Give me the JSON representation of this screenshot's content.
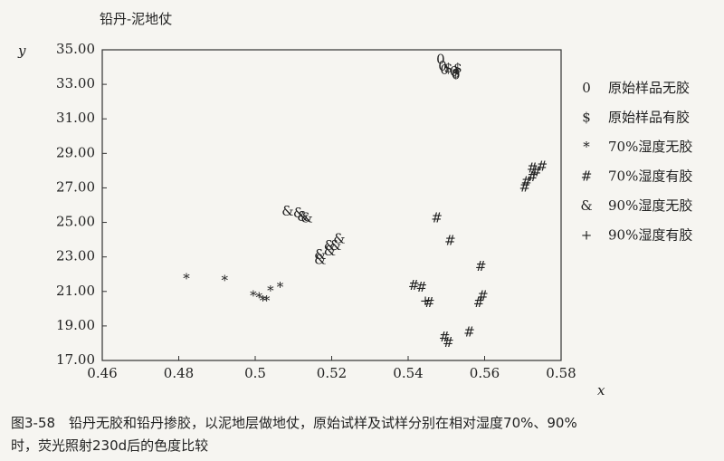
{
  "chart_data": {
    "type": "scatter",
    "title": "铅丹-泥地仗",
    "y_label": "y",
    "x_label": "x",
    "caption": [
      "图3-58　铅丹无胶和铅丹掺胶，以泥地层做地仗，原始试样及试样分别在相对湿度70%、90%",
      "时，荧光照射230d后的色度比较"
    ],
    "xlim": [
      0.46,
      0.58
    ],
    "xticks": [
      0.46,
      0.48,
      0.5,
      0.52,
      0.54,
      0.56,
      0.58
    ],
    "ylim": [
      17,
      35
    ],
    "yticks": [
      {
        "value": 17,
        "label": "17.00"
      },
      {
        "value": 19,
        "label": "19.00"
      },
      {
        "value": 21,
        "label": "21.00"
      },
      {
        "value": 23,
        "label": "23.00"
      },
      {
        "value": 25,
        "label": "25.00"
      },
      {
        "value": 27,
        "label": "27.00"
      },
      {
        "value": 29,
        "label": "29.00"
      },
      {
        "value": 31,
        "label": "31.00"
      },
      {
        "value": 33,
        "label": "33.00"
      },
      {
        "value": 35,
        "label": "35.00"
      }
    ],
    "legend": "right",
    "series": [
      {
        "name": "原始样品无胶",
        "marker": "0",
        "color": "#333333",
        "x": [
          0.5485,
          0.549,
          0.5495,
          0.552,
          0.5525
        ],
        "values": [
          34.4,
          34.0,
          33.8,
          33.7,
          33.5
        ]
      },
      {
        "name": "原始样品有胶",
        "marker": "$",
        "color": "#333333",
        "x": [
          0.5505,
          0.5525,
          0.553
        ],
        "values": [
          33.9,
          33.6,
          33.9
        ]
      },
      {
        "name": "70%湿度无胶",
        "marker": "*",
        "color": "#333333",
        "x": [
          0.482,
          0.492,
          0.4995,
          0.501,
          0.502,
          0.503,
          0.504,
          0.5065
        ],
        "values": [
          21.7,
          21.6,
          20.7,
          20.6,
          20.4,
          20.4,
          21.0,
          21.2
        ]
      },
      {
        "name": "70%湿度有胶",
        "marker": "#",
        "color": "#333333",
        "x": [
          0.5415,
          0.5435,
          0.5455,
          0.5475,
          0.5495,
          0.5505,
          0.551,
          0.556,
          0.5585,
          0.559,
          0.5595,
          0.5705,
          0.571,
          0.5725,
          0.5735,
          0.575,
          0.5725
        ],
        "values": [
          21.3,
          21.2,
          20.3,
          25.2,
          18.3,
          18.0,
          23.9,
          18.6,
          20.3,
          22.4,
          20.7,
          27.0,
          27.3,
          27.6,
          27.9,
          28.2,
          28.1
        ]
      },
      {
        "name": "90%湿度无胶",
        "marker": "&",
        "color": "#333333",
        "x": [
          0.5085,
          0.5115,
          0.5125,
          0.5135,
          0.517,
          0.517,
          0.5195,
          0.5195,
          0.521,
          0.522
        ],
        "values": [
          25.6,
          25.5,
          25.3,
          25.2,
          22.8,
          23.1,
          23.3,
          23.6,
          23.6,
          24.0
        ]
      },
      {
        "name": "90%湿度有胶",
        "marker": "+",
        "color": "#333333",
        "x": [
          0.5445
        ],
        "values": [
          20.4
        ]
      }
    ]
  }
}
